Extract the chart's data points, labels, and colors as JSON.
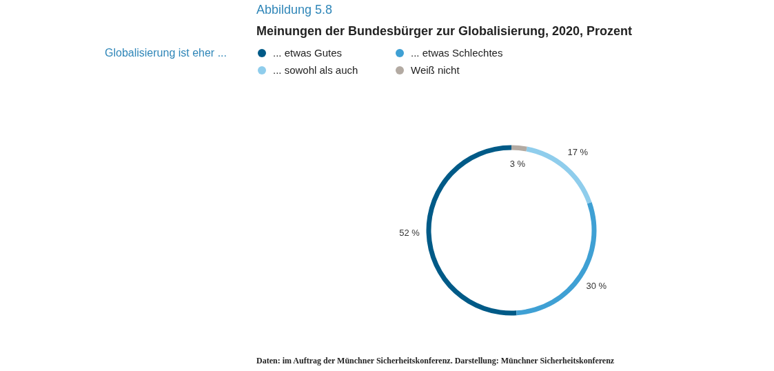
{
  "chart_data": {
    "type": "donut",
    "title": "Abbildung 5.8",
    "subtitle": "Meinungen der Bundesbürger zur Globalisierung, 2020, Prozent",
    "legend_title": "Globalisierung ist eher ...",
    "categories": [
      "... etwas Gutes",
      "... etwas Schlechtes",
      "... sowohl als auch",
      "Weiß nicht"
    ],
    "values": [
      52,
      30,
      17,
      3
    ],
    "colors": [
      "#005a87",
      "#3fa0d4",
      "#8fcdec",
      "#b3aaa2"
    ],
    "value_labels": [
      "52 %",
      "30 %",
      "17 %",
      "3 %"
    ],
    "legend": "top",
    "annotations": [
      "Daten: im Auftrag der Münchner Sicherheitskonferenz. Darstellung: Münchner Sicherheitskonferenz"
    ]
  }
}
